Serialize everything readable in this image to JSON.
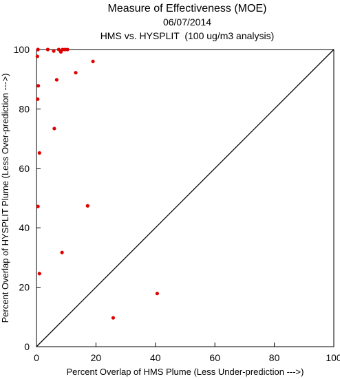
{
  "chart_data": {
    "type": "scatter",
    "title": "Measure of Effectiveness (MOE)",
    "date": "06/07/2014",
    "subtitle": "HMS vs. HYSPLIT  (100 ug/m3 analysis)",
    "xlabel": "Percent Overlap of HMS Plume (Less Under-prediction --->)",
    "ylabel": "Percent Overlap of HYSPLIT Plume (Less Over-prediction --->)",
    "xlim": [
      0,
      100
    ],
    "ylim": [
      0,
      100
    ],
    "xticks": [
      "0",
      "20",
      "40",
      "60",
      "80",
      "100"
    ],
    "yticks": [
      "0",
      "20",
      "40",
      "60",
      "80",
      "100"
    ],
    "grid": false,
    "reference_line": "y = x",
    "marker_color": "#e00000",
    "points": [
      {
        "x": 0.5,
        "y": 100
      },
      {
        "x": 0.3,
        "y": 97.7
      },
      {
        "x": 3.8,
        "y": 100
      },
      {
        "x": 5.8,
        "y": 99.5
      },
      {
        "x": 7.5,
        "y": 100
      },
      {
        "x": 8.2,
        "y": 99.2
      },
      {
        "x": 8.8,
        "y": 100
      },
      {
        "x": 9.6,
        "y": 100
      },
      {
        "x": 10.4,
        "y": 100
      },
      {
        "x": 19.0,
        "y": 96.0
      },
      {
        "x": 13.2,
        "y": 92.2
      },
      {
        "x": 0.6,
        "y": 87.8
      },
      {
        "x": 6.8,
        "y": 89.8
      },
      {
        "x": 0.4,
        "y": 83.3
      },
      {
        "x": 6.0,
        "y": 73.4
      },
      {
        "x": 1.0,
        "y": 65.2
      },
      {
        "x": 0.5,
        "y": 47.2
      },
      {
        "x": 17.2,
        "y": 47.4
      },
      {
        "x": 8.6,
        "y": 31.7
      },
      {
        "x": 1.0,
        "y": 24.6
      },
      {
        "x": 40.6,
        "y": 17.9
      },
      {
        "x": 25.8,
        "y": 9.7
      }
    ]
  }
}
